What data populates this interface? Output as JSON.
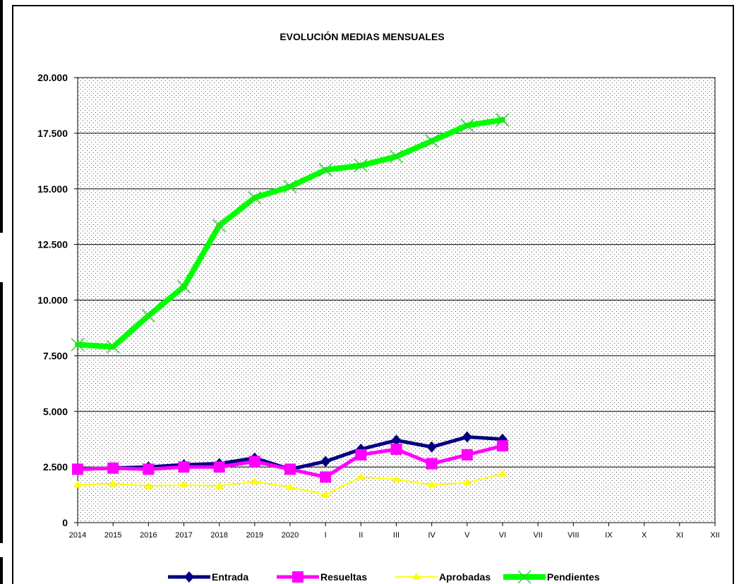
{
  "chart_data": {
    "type": "line",
    "title": "EVOLUCIÓN MEDIAS MENSUALES",
    "categories": [
      "2014",
      "2015",
      "2016",
      "2017",
      "2018",
      "2019",
      "2020",
      "I",
      "II",
      "III",
      "IV",
      "V",
      "VI",
      "VII",
      "VIII",
      "IX",
      "X",
      "XI",
      "XII"
    ],
    "series": [
      {
        "name": "Entrada",
        "color": "#000080",
        "marker": "diamond",
        "values": [
          2400,
          2450,
          2500,
          2600,
          2650,
          2900,
          2400,
          2750,
          3300,
          3700,
          3400,
          3850,
          3750,
          null,
          null,
          null,
          null,
          null,
          null
        ]
      },
      {
        "name": "Resueltas",
        "color": "#ff00ff",
        "marker": "square",
        "values": [
          2400,
          2450,
          2400,
          2500,
          2500,
          2750,
          2400,
          2050,
          3050,
          3300,
          2650,
          3050,
          3450,
          null,
          null,
          null,
          null,
          null,
          null
        ]
      },
      {
        "name": "Aprobadas",
        "color": "#ffff00",
        "marker": "triangle",
        "values": [
          1700,
          1750,
          1650,
          1700,
          1650,
          1850,
          1600,
          1250,
          2050,
          1950,
          1700,
          1800,
          2200,
          null,
          null,
          null,
          null,
          null,
          null
        ]
      },
      {
        "name": "Pendientes",
        "color": "#00ff00",
        "marker": "x",
        "values": [
          8000,
          7900,
          9300,
          10600,
          13350,
          14600,
          15100,
          15850,
          16050,
          16450,
          17150,
          17850,
          18100,
          null,
          null,
          null,
          null,
          null,
          null
        ]
      }
    ],
    "ylim": [
      0,
      20000
    ],
    "yticks": [
      0,
      {
        "value": 2500,
        "label": "2.500"
      },
      {
        "value": 5000,
        "label": "5.000"
      },
      {
        "value": 7500,
        "label": "7.500"
      },
      {
        "value": 10000,
        "label": "10.000"
      },
      {
        "value": 12500,
        "label": "12.500"
      },
      {
        "value": 15000,
        "label": "15.000"
      },
      {
        "value": 17500,
        "label": "17.500"
      },
      {
        "value": 20000,
        "label": "20.000"
      }
    ],
    "grid": true,
    "legend": "bottom"
  }
}
